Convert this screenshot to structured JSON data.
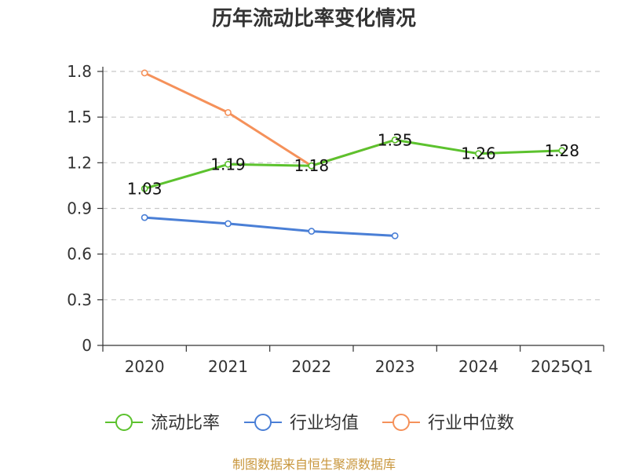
{
  "chart_data": {
    "type": "line",
    "title": "历年流动比率变化情况",
    "categories": [
      "2020",
      "2021",
      "2022",
      "2023",
      "2024",
      "2025Q1"
    ],
    "ylim": [
      0,
      1.8
    ],
    "yticks": [
      "0",
      "0.3",
      "0.6",
      "0.9",
      "1.2",
      "1.5",
      "1.8"
    ],
    "grid": true,
    "legend_position": "bottom",
    "series": [
      {
        "name": "流动比率",
        "color": "#5cc22e",
        "values": [
          1.03,
          1.19,
          1.18,
          1.35,
          1.26,
          1.28
        ],
        "labels": [
          "1.03",
          "1.19",
          "1.18",
          "1.35",
          "1.26",
          "1.28"
        ]
      },
      {
        "name": "行业均值",
        "color": "#4a7fd6",
        "values": [
          0.84,
          0.8,
          0.75,
          0.72,
          null,
          null
        ]
      },
      {
        "name": "行业中位数",
        "color": "#f5915a",
        "values": [
          1.79,
          1.53,
          1.18,
          1.35,
          null,
          null
        ]
      }
    ]
  },
  "source": "制图数据来自恒生聚源数据库"
}
